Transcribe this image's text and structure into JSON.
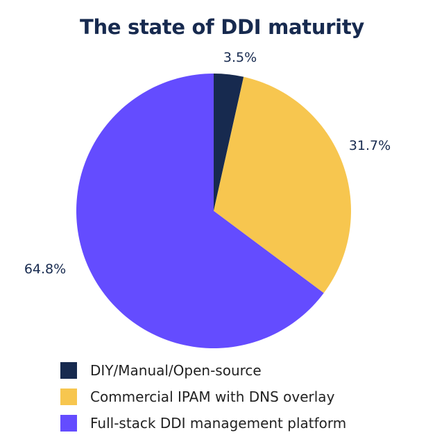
{
  "chart_data": {
    "type": "pie",
    "title": "The state of DDI maturity",
    "start_angle": "top",
    "direction": "clockwise",
    "legend_position": "bottom",
    "slices": [
      {
        "name": "DIY/Manual/Open-source",
        "value": 3.5,
        "label": "3.5%",
        "color": "#172a4f"
      },
      {
        "name": "Commercial IPAM with DNS overlay",
        "value": 31.7,
        "label": "31.7%",
        "color": "#f7c64f"
      },
      {
        "name": "Full-stack DDI management platform",
        "value": 64.8,
        "label": "64.8%",
        "color": "#644cff"
      }
    ]
  }
}
